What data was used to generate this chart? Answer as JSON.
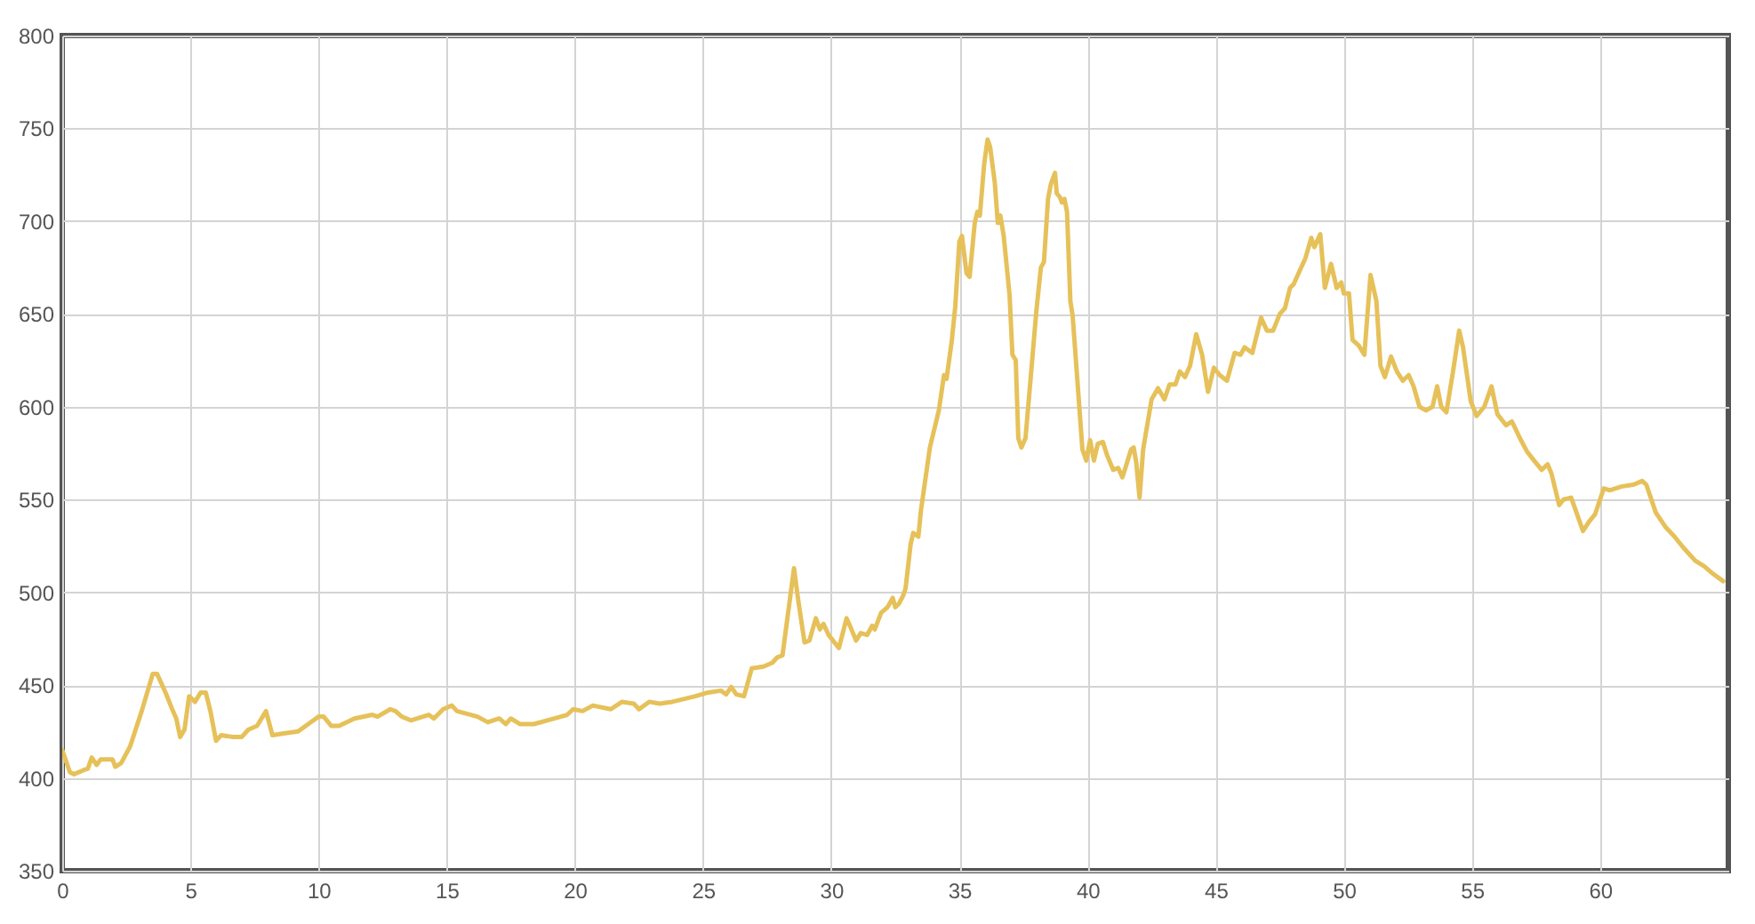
{
  "chart_data": {
    "type": "line",
    "series": [
      {
        "color": "#e6c15a",
        "x": [
          0,
          0.3,
          0.46,
          0.8,
          1.0,
          1.15,
          1.34,
          1.5,
          1.96,
          2.07,
          2.3,
          2.65,
          3.1,
          3.53,
          3.7,
          4.03,
          4.26,
          4.45,
          4.6,
          4.77,
          4.95,
          5.18,
          5.4,
          5.6,
          5.78,
          6.0,
          6.2,
          6.68,
          7.0,
          7.26,
          7.6,
          7.95,
          8.2,
          8.64,
          9.2,
          9.5,
          9.8,
          10.0,
          10.2,
          10.5,
          10.8,
          11.4,
          12.1,
          12.3,
          12.8,
          13.0,
          13.25,
          13.6,
          14.3,
          14.5,
          14.86,
          15.2,
          15.4,
          16.2,
          16.6,
          17.05,
          17.3,
          17.5,
          17.85,
          18.4,
          19.2,
          19.7,
          19.93,
          20.3,
          20.7,
          21.4,
          21.84,
          22.3,
          22.5,
          22.9,
          23.3,
          23.8,
          24.7,
          25.2,
          25.7,
          25.9,
          26.1,
          26.3,
          26.6,
          26.9,
          27.36,
          27.7,
          27.9,
          28.1,
          28.3,
          28.55,
          28.7,
          28.96,
          29.15,
          29.4,
          29.56,
          29.7,
          29.9,
          30.3,
          30.6,
          30.76,
          30.97,
          31.15,
          31.4,
          31.6,
          31.7,
          31.95,
          32.2,
          32.4,
          32.5,
          32.65,
          32.8,
          32.9,
          33.1,
          33.2,
          33.4,
          33.5,
          33.85,
          34.2,
          34.4,
          34.5,
          34.7,
          34.84,
          35.0,
          35.1,
          35.28,
          35.4,
          35.6,
          35.7,
          35.8,
          35.97,
          36.1,
          36.2,
          36.38,
          36.5,
          36.6,
          36.73,
          36.96,
          37.07,
          37.2,
          37.3,
          37.42,
          37.58,
          37.76,
          38.0,
          38.18,
          38.3,
          38.46,
          38.57,
          38.73,
          38.8,
          38.92,
          39.0,
          39.1,
          39.2,
          39.33,
          39.42,
          39.6,
          39.8,
          39.95,
          40.1,
          40.25,
          40.4,
          40.6,
          40.76,
          41.0,
          41.2,
          41.36,
          41.5,
          41.7,
          41.8,
          41.9,
          42.03,
          42.17,
          42.5,
          42.75,
          43.0,
          43.2,
          43.43,
          43.6,
          43.8,
          44.0,
          44.24,
          44.47,
          44.7,
          44.93,
          45.16,
          45.44,
          45.74,
          45.97,
          46.13,
          46.43,
          46.77,
          47.0,
          47.24,
          47.5,
          47.7,
          47.9,
          48.04,
          48.27,
          48.5,
          48.73,
          48.85,
          49.08,
          49.26,
          49.5,
          49.72,
          49.9,
          50.0,
          50.2,
          50.34,
          50.58,
          50.8,
          51.04,
          51.27,
          51.43,
          51.6,
          51.84,
          52.07,
          52.3,
          52.53,
          52.72,
          52.95,
          53.2,
          53.46,
          53.64,
          53.8,
          54.0,
          54.26,
          54.5,
          54.65,
          54.95,
          55.18,
          55.48,
          55.76,
          55.99,
          56.33,
          56.56,
          56.87,
          57.14,
          57.42,
          57.72,
          57.95,
          58.1,
          58.4,
          58.57,
          58.87,
          59.1,
          59.33,
          59.56,
          59.8,
          60.14,
          60.37,
          60.83,
          61.3,
          61.64,
          61.8,
          62.17,
          62.56,
          62.9,
          63.25,
          63.71,
          64.06,
          64.4,
          64.8
        ],
        "values": [
          415,
          403,
          402,
          404,
          405,
          411,
          407,
          410,
          410,
          406,
          408,
          417,
          436,
          456,
          456,
          446,
          438,
          432,
          422,
          426,
          444,
          441,
          446,
          446,
          436,
          420,
          423,
          422,
          422,
          426,
          428,
          436,
          423,
          424,
          425,
          428,
          431,
          433,
          433,
          428,
          428,
          432,
          434,
          433,
          437,
          436,
          433,
          431,
          434,
          432,
          437,
          439,
          436,
          433,
          430,
          432,
          429,
          432,
          429,
          429,
          432,
          434,
          437,
          436,
          439,
          437,
          441,
          440,
          437,
          441,
          440,
          441,
          444,
          446,
          447,
          445,
          449,
          445,
          444,
          459,
          460,
          462,
          465,
          466,
          487,
          513,
          497,
          473,
          474,
          486,
          480,
          483,
          477,
          470,
          486,
          481,
          474,
          478,
          477,
          482,
          480,
          489,
          492,
          497,
          492,
          494,
          498,
          502,
          526,
          532,
          530,
          544,
          578,
          598,
          617,
          615,
          635,
          654,
          689,
          692,
          672,
          670,
          699,
          705,
          703,
          731,
          744,
          740,
          721,
          699,
          703,
          692,
          660,
          628,
          625,
          583,
          578,
          583,
          612,
          651,
          675,
          678,
          712,
          720,
          726,
          715,
          713,
          710,
          712,
          705,
          657,
          649,
          615,
          577,
          571,
          582,
          571,
          580,
          581,
          574,
          566,
          567,
          562,
          568,
          577,
          578,
          570,
          551,
          577,
          604,
          610,
          604,
          612,
          612,
          619,
          616,
          622,
          639,
          628,
          608,
          621,
          617,
          614,
          629,
          628,
          632,
          629,
          648,
          641,
          641,
          650,
          653,
          664,
          666,
          673,
          680,
          691,
          686,
          693,
          664,
          677,
          664,
          667,
          661,
          661,
          636,
          633,
          628,
          671,
          657,
          622,
          616,
          627,
          619,
          614,
          617,
          611,
          600,
          598,
          600,
          611,
          600,
          597,
          619,
          641,
          632,
          603,
          595,
          600,
          611,
          596,
          590,
          592,
          583,
          576,
          571,
          566,
          569,
          564,
          547,
          550,
          551,
          542,
          533,
          538,
          542,
          556,
          555,
          557,
          558,
          560,
          558,
          543,
          535,
          530,
          524,
          517,
          514,
          510,
          506
        ]
      }
    ],
    "xlim": [
      0,
      65
    ],
    "ylim": [
      350,
      800
    ],
    "xticks": [
      0,
      5,
      10,
      15,
      20,
      25,
      30,
      35,
      40,
      45,
      50,
      55,
      60
    ],
    "yticks": [
      350,
      400,
      450,
      500,
      550,
      600,
      650,
      700,
      750,
      800
    ],
    "grid": true,
    "line_style": "solid"
  }
}
